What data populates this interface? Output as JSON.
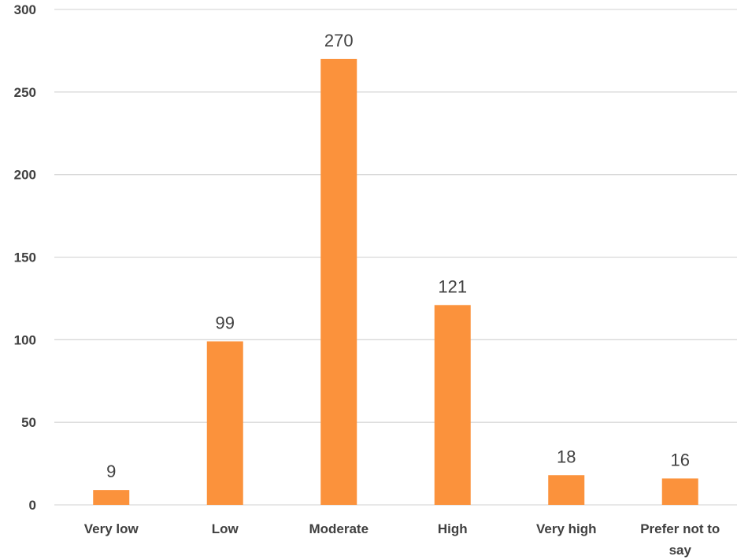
{
  "chart_data": {
    "type": "bar",
    "categories": [
      "Very low",
      "Low",
      "Moderate",
      "High",
      "Very high",
      "Prefer not to say"
    ],
    "category_lines": [
      [
        "Very low"
      ],
      [
        "Low"
      ],
      [
        "Moderate"
      ],
      [
        "High"
      ],
      [
        "Very high"
      ],
      [
        "Prefer not to",
        "say"
      ]
    ],
    "values": [
      9,
      99,
      270,
      121,
      18,
      16
    ],
    "y_ticks": [
      0,
      50,
      100,
      150,
      200,
      250,
      300
    ],
    "ylim": [
      0,
      300
    ],
    "grid": true,
    "legend": "none",
    "title": "",
    "xlabel": "",
    "ylabel": ""
  },
  "colors": {
    "bar": "#fb923c",
    "grid": "#d9d9d9",
    "text": "#404040"
  }
}
